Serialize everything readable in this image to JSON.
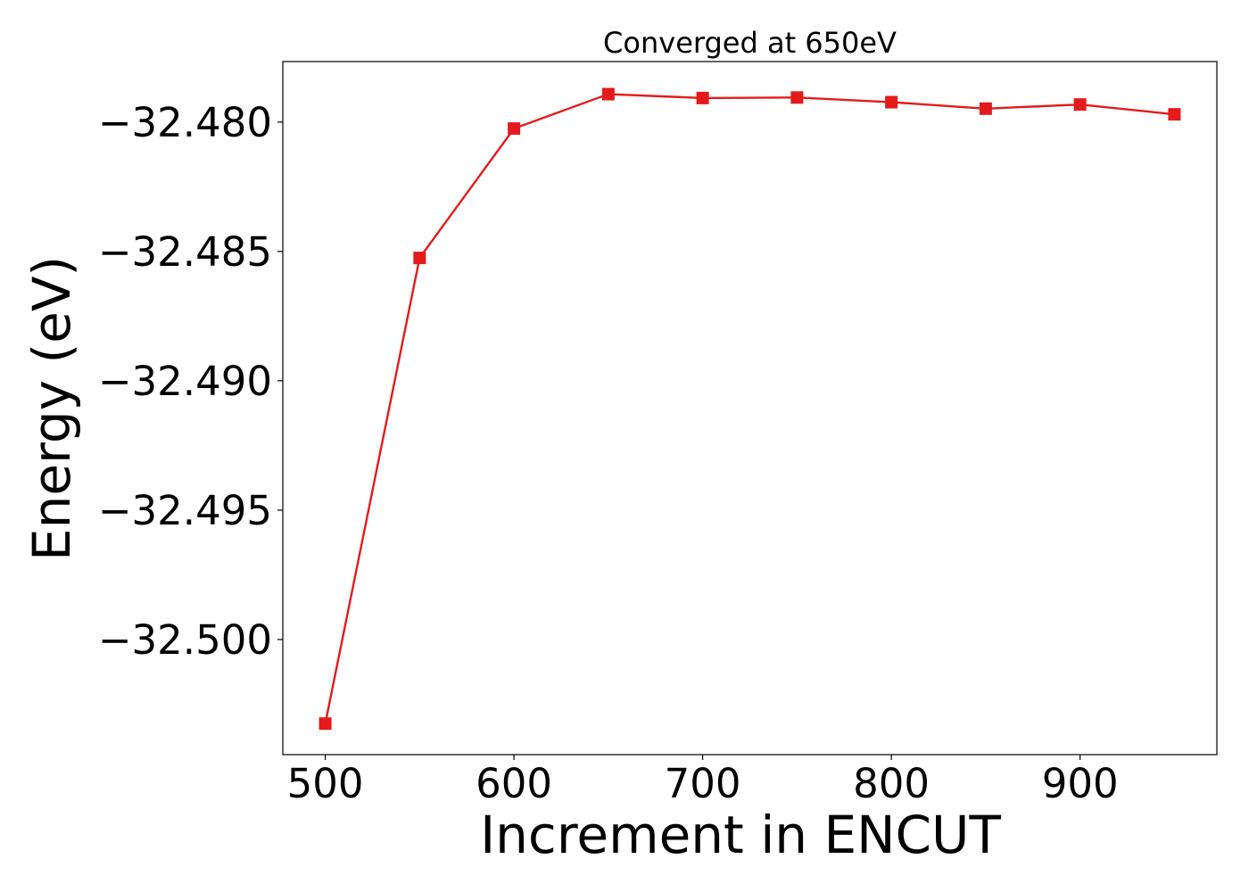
{
  "chart_data": {
    "type": "line",
    "title": "Converged at 650eV",
    "xlabel": "Increment in ENCUT",
    "ylabel": "Energy (eV)",
    "x": [
      500,
      550,
      600,
      650,
      700,
      750,
      800,
      850,
      900,
      950
    ],
    "series": [
      {
        "values": [
          -32.50325,
          -32.48525,
          -32.48025,
          -32.47892,
          -32.47907,
          -32.47905,
          -32.47923,
          -32.47948,
          -32.47932,
          -32.4797
        ],
        "color": "#e41a1c",
        "marker": "square"
      }
    ],
    "xlim": [
      477.5,
      972.5
    ],
    "ylim": [
      -32.50445,
      -32.47766
    ],
    "xticks": [
      500,
      600,
      700,
      800,
      900
    ],
    "xtick_labels": [
      "500",
      "600",
      "700",
      "800",
      "900"
    ],
    "yticks": [
      -32.48,
      -32.485,
      -32.49,
      -32.495,
      -32.5
    ],
    "ytick_labels": [
      "−32.480",
      "−32.485",
      "−32.490",
      "−32.495",
      "−32.500"
    ],
    "grid": false,
    "legend": "none"
  }
}
